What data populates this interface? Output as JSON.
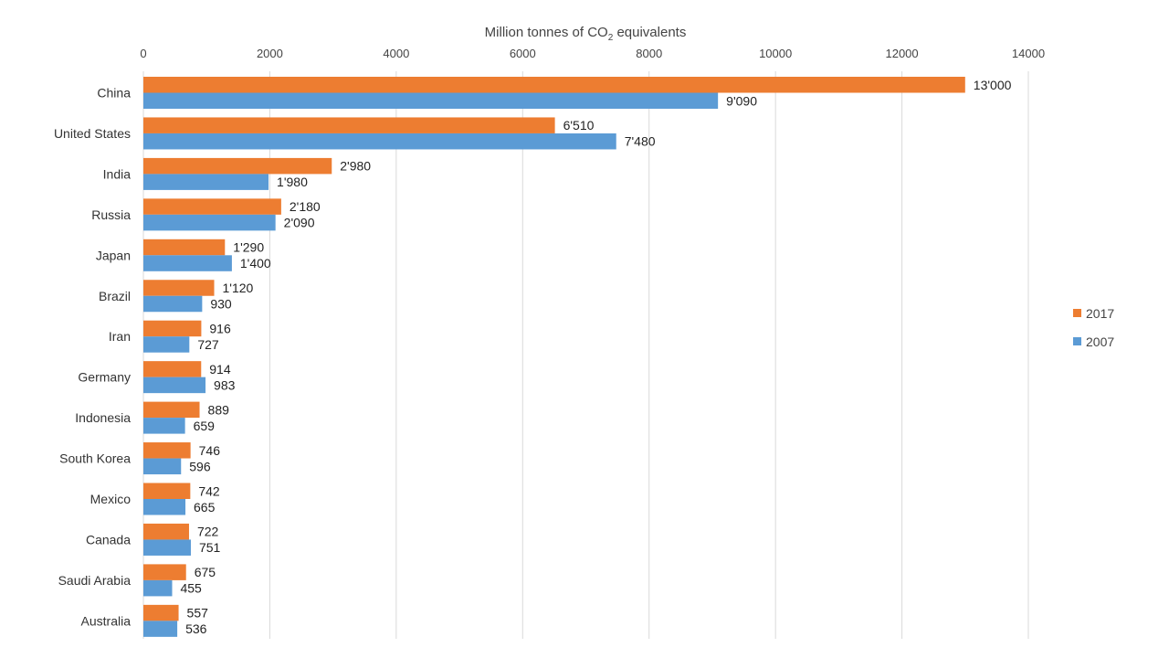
{
  "chart_data": {
    "type": "bar",
    "orientation": "horizontal",
    "xlabel": {
      "prefix": "Million tonnes of CO",
      "subscript": "2",
      "suffix": " equivalents"
    },
    "xlim": [
      0,
      14000
    ],
    "x_ticks": [
      "0",
      "2000",
      "4000",
      "6000",
      "8000",
      "10000",
      "12000",
      "14000"
    ],
    "x_axis_position": "top",
    "grid": true,
    "legend_position": "right",
    "categories": [
      "China",
      "United States",
      "India",
      "Russia",
      "Japan",
      "Brazil",
      "Iran",
      "Germany",
      "Indonesia",
      "South Korea",
      "Mexico",
      "Canada",
      "Saudi Arabia",
      "Australia"
    ],
    "series": [
      {
        "name": "2017",
        "color": "#ED7D31",
        "values": [
          13000,
          6510,
          2980,
          2180,
          1290,
          1120,
          916,
          914,
          889,
          746,
          742,
          722,
          675,
          557
        ],
        "labels": [
          "13'000",
          "6'510",
          "2'980",
          "2'180",
          "1'290",
          "1'120",
          "916",
          "914",
          "889",
          "746",
          "742",
          "722",
          "675",
          "557"
        ]
      },
      {
        "name": "2007",
        "color": "#5B9BD5",
        "values": [
          9090,
          7480,
          1980,
          2090,
          1400,
          930,
          727,
          983,
          659,
          596,
          665,
          751,
          455,
          536
        ],
        "labels": [
          "9'090",
          "7'480",
          "1'980",
          "2'090",
          "1'400",
          "930",
          "727",
          "983",
          "659",
          "596",
          "665",
          "751",
          "455",
          "536"
        ]
      }
    ]
  }
}
